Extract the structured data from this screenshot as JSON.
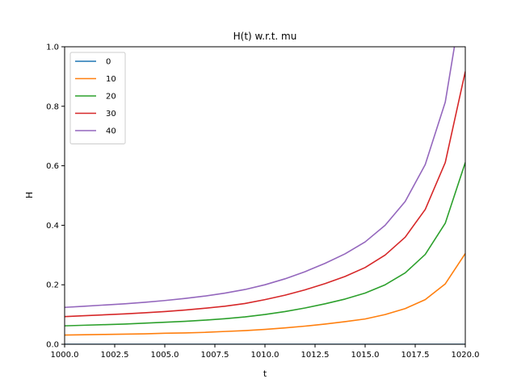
{
  "chart_data": {
    "type": "line",
    "title": "H(t) w.r.t. mu",
    "xlabel": "t",
    "ylabel": "H",
    "xlim": [
      1000,
      1020
    ],
    "ylim": [
      0,
      1.0
    ],
    "xticks": [
      "1000.0",
      "1002.5",
      "1005.0",
      "1007.5",
      "1010.0",
      "1012.5",
      "1015.0",
      "1017.5",
      "1020.0"
    ],
    "yticks": [
      "0.0",
      "0.2",
      "0.4",
      "0.6",
      "0.8",
      "1.0"
    ],
    "legend_position": "top-left",
    "grid": false,
    "x": [
      1000,
      1001,
      1002,
      1003,
      1004,
      1005,
      1006,
      1007,
      1008,
      1009,
      1010,
      1011,
      1012,
      1013,
      1014,
      1015,
      1016,
      1017,
      1018,
      1019,
      1020
    ],
    "series": [
      {
        "name": "0",
        "color": "#1f77b4",
        "values": [
          0,
          0,
          0,
          0,
          0,
          0,
          0,
          0,
          0,
          0,
          0,
          0,
          0,
          0,
          0,
          0,
          0,
          0,
          0,
          0,
          0
        ]
      },
      {
        "name": "10",
        "color": "#ff7f0e",
        "values": [
          0.031,
          0.032,
          0.033,
          0.034,
          0.035,
          0.037,
          0.038,
          0.04,
          0.043,
          0.046,
          0.05,
          0.055,
          0.061,
          0.068,
          0.076,
          0.085,
          0.1,
          0.12,
          0.15,
          0.203,
          0.305
        ]
      },
      {
        "name": "20",
        "color": "#2ca02c",
        "values": [
          0.062,
          0.064,
          0.066,
          0.068,
          0.071,
          0.074,
          0.077,
          0.081,
          0.086,
          0.092,
          0.1,
          0.11,
          0.122,
          0.136,
          0.152,
          0.172,
          0.2,
          0.24,
          0.302,
          0.407,
          0.611
        ]
      },
      {
        "name": "30",
        "color": "#d62728",
        "values": [
          0.093,
          0.096,
          0.099,
          0.102,
          0.106,
          0.11,
          0.115,
          0.121,
          0.128,
          0.137,
          0.15,
          0.165,
          0.183,
          0.204,
          0.228,
          0.258,
          0.3,
          0.36,
          0.453,
          0.611,
          0.917
        ]
      },
      {
        "name": "40",
        "color": "#9467bd",
        "values": [
          0.124,
          0.128,
          0.132,
          0.136,
          0.141,
          0.147,
          0.154,
          0.162,
          0.172,
          0.184,
          0.2,
          0.22,
          0.244,
          0.272,
          0.304,
          0.344,
          0.4,
          0.48,
          0.604,
          0.814,
          1.222
        ]
      }
    ]
  }
}
